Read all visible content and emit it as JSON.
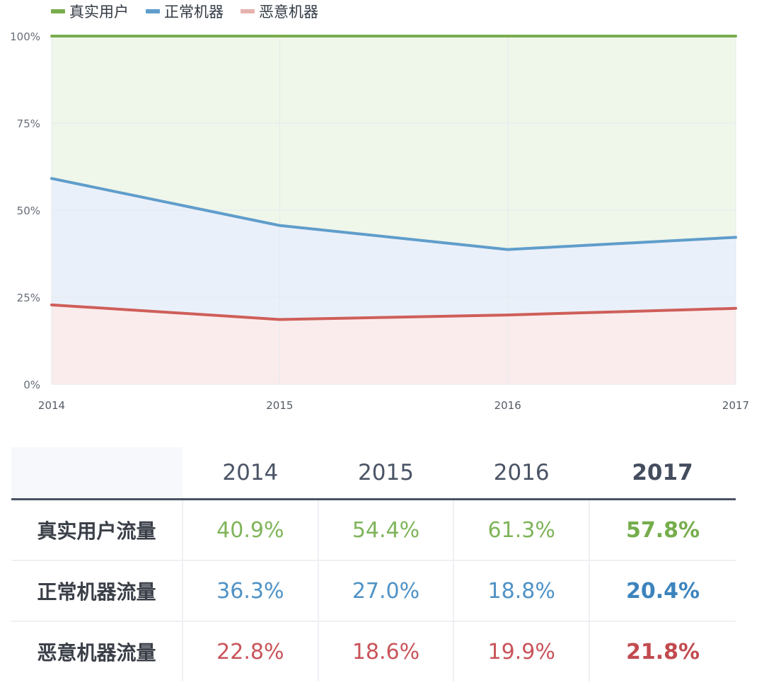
{
  "chart_data": {
    "type": "area",
    "legend_position": "top-left",
    "x": [
      "2014",
      "2015",
      "2016",
      "2017"
    ],
    "y_ticks": [
      "0%",
      "25%",
      "50%",
      "75%",
      "100%"
    ],
    "ylim": [
      0,
      100
    ],
    "grid": true,
    "series": [
      {
        "name": "真实用户",
        "key": "real",
        "color": "#79ad4e",
        "fill": "#eff6ea",
        "values": [
          40.9,
          54.4,
          61.3,
          57.8
        ],
        "upper": [
          100,
          100,
          100,
          100
        ]
      },
      {
        "name": "正常机器",
        "key": "normal",
        "color": "#5f9dcb",
        "fill": "#eaf0fa",
        "values": [
          36.3,
          27.0,
          18.8,
          20.4
        ],
        "upper": [
          59.1,
          45.6,
          38.7,
          42.2
        ]
      },
      {
        "name": "恶意机器",
        "key": "malicious",
        "color": "#cf5e59",
        "fill": "#faeced",
        "values": [
          22.8,
          18.6,
          19.9,
          21.8
        ],
        "upper": [
          22.8,
          18.6,
          19.9,
          21.8
        ]
      }
    ]
  },
  "table": {
    "headers": [
      "2014",
      "2015",
      "2016",
      "2017"
    ],
    "rows": [
      {
        "label": "真实用户流量",
        "color": "#7fb45a",
        "cells": [
          "40.9%",
          "54.4%",
          "61.3%",
          "57.8%"
        ]
      },
      {
        "label": "正常机器流量",
        "color": "#4f92c6",
        "cells": [
          "36.3%",
          "27.0%",
          "18.8%",
          "20.4%"
        ]
      },
      {
        "label": "恶意机器流量",
        "color": "#c9545a",
        "cells": [
          "22.8%",
          "18.6%",
          "19.9%",
          "21.8%"
        ]
      }
    ]
  }
}
